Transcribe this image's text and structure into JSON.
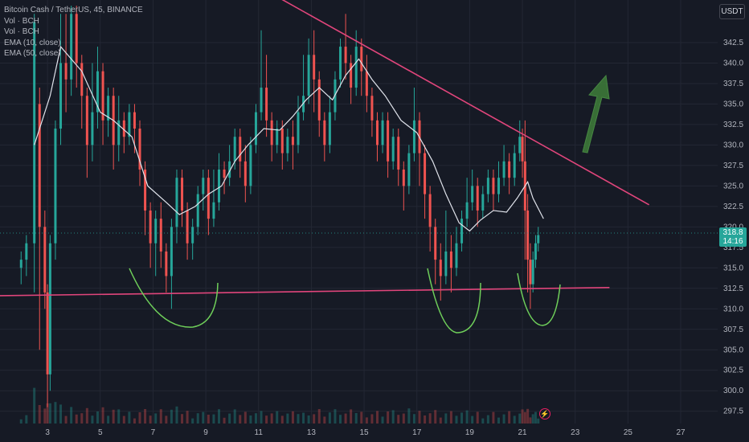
{
  "legend": {
    "symbol": "Bitcoin Cash / TetherUS, 45, BINANCE",
    "indicators": [
      "Vol · BCH",
      "Vol · BCH",
      "EMA (10, close)",
      "EMA (50, close)"
    ]
  },
  "currency_button": "USDT",
  "price_badge": {
    "price": "318.8",
    "countdown": "14:16"
  },
  "alert_icon": "lightning-icon",
  "colors": {
    "background": "#161a25",
    "up": "#26a69a",
    "down": "#ef5350",
    "ema": "#e0e3eb",
    "trendline": "#e0457b",
    "annotation_curve": "#6fcf5a",
    "arrow": "#3f7d3a",
    "price_badge": "#26a69a"
  },
  "chart_data": {
    "type": "candlestick",
    "y_axis": {
      "min": 296,
      "max": 347.5,
      "ticks": [
        "342.5",
        "340.0",
        "337.5",
        "335.0",
        "332.5",
        "330.0",
        "327.5",
        "325.0",
        "322.5",
        "320.0",
        "317.5",
        "315.0",
        "312.5",
        "310.0",
        "307.5",
        "305.0",
        "302.5",
        "300.0",
        "297.5"
      ]
    },
    "x_axis": {
      "ticks": [
        "3",
        "5",
        "7",
        "9",
        "11",
        "13",
        "15",
        "17",
        "19",
        "21",
        "23",
        "25",
        "27"
      ],
      "min": 1.2,
      "max": 28.4
    },
    "last_price": 318.8,
    "trendlines": [
      {
        "name": "descending resistance",
        "points": [
          [
            11.2,
            349
          ],
          [
            25.8,
            322.7
          ]
        ]
      },
      {
        "name": "horizontal support",
        "points": [
          [
            1.2,
            311.6
          ],
          [
            24.3,
            312.6
          ]
        ]
      }
    ],
    "ema_short_path": [
      [
        2.5,
        330
      ],
      [
        3.1,
        336
      ],
      [
        3.5,
        342
      ],
      [
        4.3,
        339
      ],
      [
        5.0,
        334
      ],
      [
        5.5,
        333
      ],
      [
        6.2,
        331
      ],
      [
        6.8,
        325
      ],
      [
        7.5,
        323
      ],
      [
        8.0,
        321.5
      ],
      [
        8.6,
        322.5
      ],
      [
        9.1,
        324
      ],
      [
        9.6,
        325
      ],
      [
        10.1,
        328
      ],
      [
        10.6,
        330
      ],
      [
        11.2,
        332
      ],
      [
        11.8,
        331.8
      ],
      [
        12.3,
        333.5
      ],
      [
        12.8,
        335.5
      ],
      [
        13.3,
        337
      ],
      [
        13.8,
        335.5
      ],
      [
        14.3,
        338.5
      ],
      [
        14.8,
        340.5
      ],
      [
        15.3,
        338
      ],
      [
        15.8,
        336
      ],
      [
        16.4,
        333
      ],
      [
        17.0,
        331.5
      ],
      [
        17.6,
        328
      ],
      [
        18.1,
        324
      ],
      [
        18.6,
        320.5
      ],
      [
        19.0,
        319.5
      ],
      [
        19.4,
        320.8
      ],
      [
        19.9,
        322
      ],
      [
        20.4,
        321.8
      ],
      [
        20.8,
        323.5
      ],
      [
        21.2,
        325.5
      ],
      [
        21.4,
        323.5
      ],
      [
        21.8,
        321
      ]
    ],
    "candles": [
      [
        2.0,
        315,
        316,
        313,
        317
      ],
      [
        2.2,
        316,
        318,
        314,
        319
      ],
      [
        2.5,
        318,
        345,
        312,
        346
      ],
      [
        2.7,
        335,
        320,
        305,
        337
      ],
      [
        2.9,
        320,
        312,
        310,
        322
      ],
      [
        3.0,
        312,
        302,
        298,
        313
      ],
      [
        3.1,
        302,
        318,
        300,
        319
      ],
      [
        3.3,
        318,
        332,
        316,
        333
      ],
      [
        3.5,
        332,
        340,
        330,
        346
      ],
      [
        3.7,
        340,
        338,
        334,
        346
      ],
      [
        3.9,
        338,
        346,
        336,
        347
      ],
      [
        4.1,
        346,
        340,
        337,
        347
      ],
      [
        4.3,
        340,
        336,
        332,
        341
      ],
      [
        4.5,
        336,
        330,
        326,
        337
      ],
      [
        4.7,
        330,
        334,
        328,
        340
      ],
      [
        4.9,
        334,
        339,
        332,
        342
      ],
      [
        5.1,
        339,
        333,
        330,
        340
      ],
      [
        5.3,
        333,
        336,
        331,
        337
      ],
      [
        5.5,
        336,
        330,
        327,
        337
      ],
      [
        5.7,
        330,
        333,
        328,
        336
      ],
      [
        5.9,
        333,
        331,
        329,
        334
      ],
      [
        6.1,
        331,
        334,
        330,
        335
      ],
      [
        6.3,
        334,
        332,
        329,
        335
      ],
      [
        6.5,
        332,
        327,
        325,
        333
      ],
      [
        6.7,
        327,
        322,
        319,
        328
      ],
      [
        6.9,
        322,
        318,
        315,
        323
      ],
      [
        7.1,
        318,
        321,
        314,
        322
      ],
      [
        7.3,
        321,
        317,
        315,
        323
      ],
      [
        7.5,
        317,
        314,
        312,
        318
      ],
      [
        7.7,
        314,
        320,
        310,
        321
      ],
      [
        7.9,
        320,
        326,
        318,
        327
      ],
      [
        8.1,
        326,
        322,
        320,
        327
      ],
      [
        8.3,
        322,
        318,
        316,
        323
      ],
      [
        8.5,
        318,
        320,
        316,
        321
      ],
      [
        8.7,
        320,
        324,
        319,
        325
      ],
      [
        8.9,
        324,
        326,
        322,
        327
      ],
      [
        9.1,
        326,
        321,
        319,
        327
      ],
      [
        9.3,
        321,
        323,
        320,
        327
      ],
      [
        9.5,
        323,
        327,
        322,
        329
      ],
      [
        9.7,
        327,
        326,
        324,
        328
      ],
      [
        9.9,
        326,
        328,
        325,
        330
      ],
      [
        10.1,
        328,
        331,
        327,
        332
      ],
      [
        10.3,
        331,
        328,
        326,
        332
      ],
      [
        10.5,
        328,
        325,
        323,
        330
      ],
      [
        10.7,
        325,
        330,
        324,
        331
      ],
      [
        10.9,
        330,
        334,
        329,
        335
      ],
      [
        11.1,
        334,
        337,
        333,
        344
      ],
      [
        11.3,
        337,
        333,
        331,
        341
      ],
      [
        11.5,
        333,
        330,
        328,
        334
      ],
      [
        11.7,
        330,
        332,
        329,
        333
      ],
      [
        11.9,
        332,
        329,
        327,
        333
      ],
      [
        12.1,
        329,
        331,
        328,
        332
      ],
      [
        12.3,
        331,
        330,
        327,
        333
      ],
      [
        12.5,
        330,
        334,
        329,
        336
      ],
      [
        12.7,
        334,
        336,
        333,
        341
      ],
      [
        12.9,
        336,
        341,
        335,
        343
      ],
      [
        13.1,
        341,
        338,
        334,
        344
      ],
      [
        13.3,
        338,
        333,
        331,
        339
      ],
      [
        13.5,
        333,
        330,
        328,
        334
      ],
      [
        13.7,
        330,
        334,
        329,
        336
      ],
      [
        13.9,
        334,
        338,
        333,
        339
      ],
      [
        14.1,
        338,
        342,
        337,
        343
      ],
      [
        14.3,
        342,
        340,
        338,
        346
      ],
      [
        14.5,
        340,
        337,
        335,
        341
      ],
      [
        14.7,
        337,
        342,
        336,
        344
      ],
      [
        14.9,
        342,
        339,
        336,
        343
      ],
      [
        15.1,
        339,
        336,
        334,
        341
      ],
      [
        15.3,
        336,
        333,
        331,
        337
      ],
      [
        15.5,
        333,
        330,
        328,
        334
      ],
      [
        15.7,
        330,
        333,
        329,
        334
      ],
      [
        15.9,
        333,
        328,
        326,
        334
      ],
      [
        16.1,
        328,
        331,
        327,
        332
      ],
      [
        16.3,
        331,
        327,
        325,
        332
      ],
      [
        16.5,
        327,
        325,
        322,
        328
      ],
      [
        16.7,
        325,
        329,
        324,
        330
      ],
      [
        16.9,
        329,
        333,
        328,
        337
      ],
      [
        17.1,
        333,
        329,
        325,
        334
      ],
      [
        17.3,
        329,
        324,
        321,
        330
      ],
      [
        17.5,
        324,
        320,
        317,
        325
      ],
      [
        17.7,
        320,
        316,
        313,
        321
      ],
      [
        17.9,
        316,
        314,
        311,
        318
      ],
      [
        18.1,
        314,
        317,
        313,
        322
      ],
      [
        18.3,
        317,
        315,
        312,
        319
      ],
      [
        18.5,
        315,
        318,
        314,
        320
      ],
      [
        18.7,
        318,
        321,
        317,
        322
      ],
      [
        18.9,
        321,
        323,
        320,
        326
      ],
      [
        19.1,
        323,
        325,
        322,
        327
      ],
      [
        19.3,
        325,
        322,
        320,
        326
      ],
      [
        19.5,
        322,
        324,
        321,
        325
      ],
      [
        19.7,
        324,
        326,
        323,
        327
      ],
      [
        19.9,
        326,
        324,
        322,
        327
      ],
      [
        20.1,
        324,
        326,
        323,
        328
      ],
      [
        20.3,
        326,
        328,
        325,
        330
      ],
      [
        20.5,
        328,
        326,
        324,
        329
      ],
      [
        20.7,
        326,
        329,
        325,
        330
      ],
      [
        20.9,
        329,
        331,
        328,
        333
      ],
      [
        21.0,
        331,
        328,
        326,
        332
      ],
      [
        21.1,
        328,
        322,
        316,
        333
      ],
      [
        21.2,
        322,
        316,
        312,
        324
      ],
      [
        21.3,
        316,
        313,
        310,
        318
      ],
      [
        21.4,
        313,
        316,
        312,
        317
      ],
      [
        21.5,
        316,
        318,
        315,
        319
      ],
      [
        21.6,
        318,
        319,
        317,
        320
      ]
    ]
  }
}
